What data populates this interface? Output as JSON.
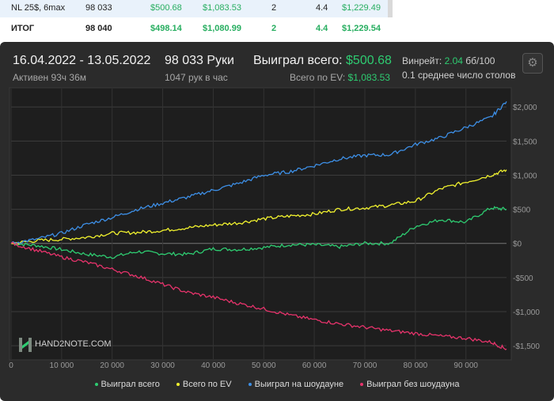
{
  "table": {
    "rows": [
      {
        "name": "NL 25$, 6max",
        "hands": "98 033",
        "won": "$500.68",
        "ev": "$1,083.53",
        "c1": "2",
        "c2": "4.4",
        "c3": "$1,229.49"
      },
      {
        "name": "ИТОГ",
        "hands": "98 040",
        "won": "$498.14",
        "ev": "$1,080.99",
        "c1": "2",
        "c2": "4.4",
        "c3": "$1,229.54"
      }
    ]
  },
  "header": {
    "date_range": "16.04.2022 - 13.05.2022",
    "active": "Активен 93ч 36м",
    "hands": "98 033 Руки",
    "hands_per_hour": "1047 рук в час",
    "won_label": "Выиграл всего:",
    "won_value": "$500.68",
    "ev_label": "Всего по EV:",
    "ev_value": "$1,083.53",
    "winrate_label": "Винрейт:",
    "winrate_value": "2.04",
    "winrate_unit": "бб/100",
    "tables": "0.1 среднее число столов"
  },
  "colors": {
    "won": "#2ecc71",
    "ev": "#f1f22e",
    "showdown": "#3d8fe6",
    "nonshowdown": "#e6336b",
    "accent": "#2ecc71"
  },
  "logo": {
    "text": "HAND2NOTE.COM"
  },
  "chart_data": {
    "type": "line",
    "xlim": [
      0,
      98033
    ],
    "ylim": [
      -1650,
      2200
    ],
    "x_ticks": [
      0,
      10000,
      20000,
      30000,
      40000,
      50000,
      60000,
      70000,
      80000,
      90000
    ],
    "x_tick_labels": [
      "0",
      "10 000",
      "20 000",
      "30 000",
      "40 000",
      "50 000",
      "60 000",
      "70 000",
      "80 000",
      "90 000"
    ],
    "y_ticks": [
      2000,
      1500,
      1000,
      500,
      0,
      -500,
      -1000,
      -1500
    ],
    "y_tick_labels": [
      "$2,000",
      "$1,500",
      "$1,000",
      "$500",
      "$0",
      "-$500",
      "-$1,000",
      "-$1,500"
    ],
    "grid": true,
    "legend_position": "bottom",
    "series": [
      {
        "name": "Выиграл всего",
        "color": "#2ecc71",
        "x": [
          0,
          5000,
          10000,
          15000,
          20000,
          25000,
          30000,
          35000,
          40000,
          45000,
          50000,
          55000,
          60000,
          65000,
          70000,
          75000,
          80000,
          85000,
          90000,
          95000,
          98033
        ],
        "values": [
          0,
          -30,
          -90,
          -160,
          -200,
          -120,
          -150,
          -160,
          -80,
          -90,
          -60,
          -20,
          -20,
          -50,
          0,
          0,
          250,
          350,
          310,
          520,
          500
        ]
      },
      {
        "name": "Всего по EV",
        "color": "#f1f22e",
        "x": [
          0,
          5000,
          10000,
          15000,
          20000,
          25000,
          30000,
          35000,
          40000,
          45000,
          50000,
          55000,
          60000,
          65000,
          70000,
          75000,
          80000,
          85000,
          90000,
          95000,
          98033
        ],
        "values": [
          0,
          40,
          60,
          90,
          150,
          160,
          190,
          230,
          270,
          300,
          360,
          400,
          430,
          500,
          520,
          560,
          620,
          800,
          900,
          1000,
          1080
        ]
      },
      {
        "name": "Выиграл на шоудауне",
        "color": "#3d8fe6",
        "x": [
          0,
          5000,
          10000,
          15000,
          20000,
          25000,
          30000,
          35000,
          40000,
          45000,
          50000,
          55000,
          60000,
          65000,
          70000,
          75000,
          80000,
          85000,
          90000,
          95000,
          98033
        ],
        "values": [
          0,
          60,
          150,
          280,
          380,
          500,
          590,
          680,
          780,
          880,
          1000,
          1050,
          1140,
          1240,
          1290,
          1300,
          1450,
          1550,
          1700,
          1850,
          2080
        ]
      },
      {
        "name": "Выиграл без шоудауна",
        "color": "#e6336b",
        "x": [
          0,
          5000,
          10000,
          15000,
          20000,
          25000,
          30000,
          35000,
          40000,
          45000,
          50000,
          55000,
          60000,
          65000,
          70000,
          75000,
          80000,
          85000,
          90000,
          95000,
          98033
        ],
        "values": [
          0,
          -100,
          -200,
          -280,
          -380,
          -480,
          -600,
          -720,
          -790,
          -880,
          -960,
          -1050,
          -1120,
          -1180,
          -1230,
          -1280,
          -1320,
          -1360,
          -1390,
          -1450,
          -1550
        ]
      }
    ]
  }
}
